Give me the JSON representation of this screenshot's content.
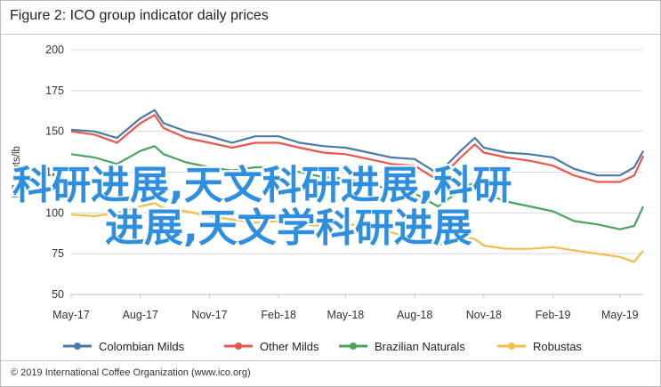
{
  "figure": {
    "title": "Figure 2: ICO group indicator daily prices",
    "copyright": "© 2019 International Coffee Organization (www.ico.org)"
  },
  "overlay": {
    "line1": "科研进展,天文科研进展,科研",
    "line2": "进展,天文学科研进展",
    "color": "#2e8fe0"
  },
  "chart_data": {
    "type": "line",
    "title": "Figure 2: ICO group indicator daily prices",
    "ylabel": "US cents/lb",
    "xlabel": "",
    "ylim": [
      50,
      200
    ],
    "yticks": [
      50,
      75,
      100,
      125,
      150,
      175,
      200
    ],
    "xlim": [
      "2017-05-01",
      "2019-06-01"
    ],
    "xticks": [
      "May-17",
      "Aug-17",
      "Nov-17",
      "Feb-18",
      "May-18",
      "Aug-18",
      "Nov-18",
      "Feb-19",
      "May-19"
    ],
    "grid": true,
    "legend_position": "bottom",
    "series": [
      {
        "name": "Colombian Milds",
        "color": "#4a7ba8",
        "x": [
          "2017-05-01",
          "2017-06-01",
          "2017-07-01",
          "2017-08-01",
          "2017-08-20",
          "2017-09-01",
          "2017-10-01",
          "2017-11-01",
          "2017-12-01",
          "2018-01-01",
          "2018-02-01",
          "2018-03-01",
          "2018-04-01",
          "2018-05-01",
          "2018-06-01",
          "2018-07-01",
          "2018-08-01",
          "2018-09-01",
          "2018-10-01",
          "2018-10-20",
          "2018-11-01",
          "2018-12-01",
          "2019-01-01",
          "2019-02-01",
          "2019-03-01",
          "2019-04-01",
          "2019-05-01",
          "2019-05-20",
          "2019-06-01"
        ],
        "values": [
          151,
          150,
          146,
          158,
          163,
          155,
          150,
          147,
          143,
          147,
          147,
          143,
          141,
          140,
          137,
          134,
          133,
          124,
          138,
          146,
          140,
          137,
          136,
          134,
          127,
          123,
          123,
          128,
          138
        ]
      },
      {
        "name": "Other Milds",
        "color": "#e8574e",
        "x": [
          "2017-05-01",
          "2017-06-01",
          "2017-07-01",
          "2017-08-01",
          "2017-08-20",
          "2017-09-01",
          "2017-10-01",
          "2017-11-01",
          "2017-12-01",
          "2018-01-01",
          "2018-02-01",
          "2018-03-01",
          "2018-04-01",
          "2018-05-01",
          "2018-06-01",
          "2018-07-01",
          "2018-08-01",
          "2018-09-01",
          "2018-10-01",
          "2018-10-20",
          "2018-11-01",
          "2018-12-01",
          "2019-01-01",
          "2019-02-01",
          "2019-03-01",
          "2019-04-01",
          "2019-05-01",
          "2019-05-20",
          "2019-06-01"
        ],
        "values": [
          150,
          148,
          143,
          155,
          160,
          152,
          146,
          143,
          140,
          143,
          143,
          140,
          137,
          136,
          133,
          130,
          129,
          120,
          134,
          142,
          137,
          134,
          132,
          129,
          123,
          119,
          119,
          123,
          135
        ]
      },
      {
        "name": "Brazilian Naturals",
        "color": "#4aa35e",
        "x": [
          "2017-05-01",
          "2017-06-01",
          "2017-07-01",
          "2017-08-01",
          "2017-08-20",
          "2017-09-01",
          "2017-10-01",
          "2017-11-01",
          "2017-12-01",
          "2018-01-01",
          "2018-02-01",
          "2018-03-01",
          "2018-04-01",
          "2018-05-01",
          "2018-06-01",
          "2018-07-01",
          "2018-08-01",
          "2018-09-01",
          "2018-10-01",
          "2018-10-20",
          "2018-11-01",
          "2018-12-01",
          "2019-01-01",
          "2019-02-01",
          "2019-03-01",
          "2019-04-01",
          "2019-05-01",
          "2019-05-20",
          "2019-06-01"
        ],
        "values": [
          136,
          134,
          130,
          138,
          141,
          136,
          131,
          128,
          126,
          128,
          128,
          125,
          122,
          121,
          118,
          114,
          112,
          104,
          114,
          119,
          112,
          107,
          104,
          101,
          95,
          93,
          90,
          92,
          104
        ]
      },
      {
        "name": "Robustas",
        "color": "#f6bc4a",
        "x": [
          "2017-05-01",
          "2017-06-01",
          "2017-07-01",
          "2017-08-01",
          "2017-08-20",
          "2017-09-01",
          "2017-10-01",
          "2017-11-01",
          "2017-12-01",
          "2018-01-01",
          "2018-02-01",
          "2018-03-01",
          "2018-04-01",
          "2018-05-01",
          "2018-06-01",
          "2018-07-01",
          "2018-08-01",
          "2018-09-01",
          "2018-10-01",
          "2018-10-20",
          "2018-11-01",
          "2018-12-01",
          "2019-01-01",
          "2019-02-01",
          "2019-03-01",
          "2019-04-01",
          "2019-05-01",
          "2019-05-20",
          "2019-06-01"
        ],
        "values": [
          99,
          98,
          100,
          104,
          106,
          103,
          101,
          98,
          96,
          94,
          95,
          93,
          92,
          93,
          92,
          88,
          84,
          80,
          86,
          84,
          80,
          78,
          78,
          79,
          77,
          75,
          73,
          70,
          77
        ]
      }
    ]
  }
}
